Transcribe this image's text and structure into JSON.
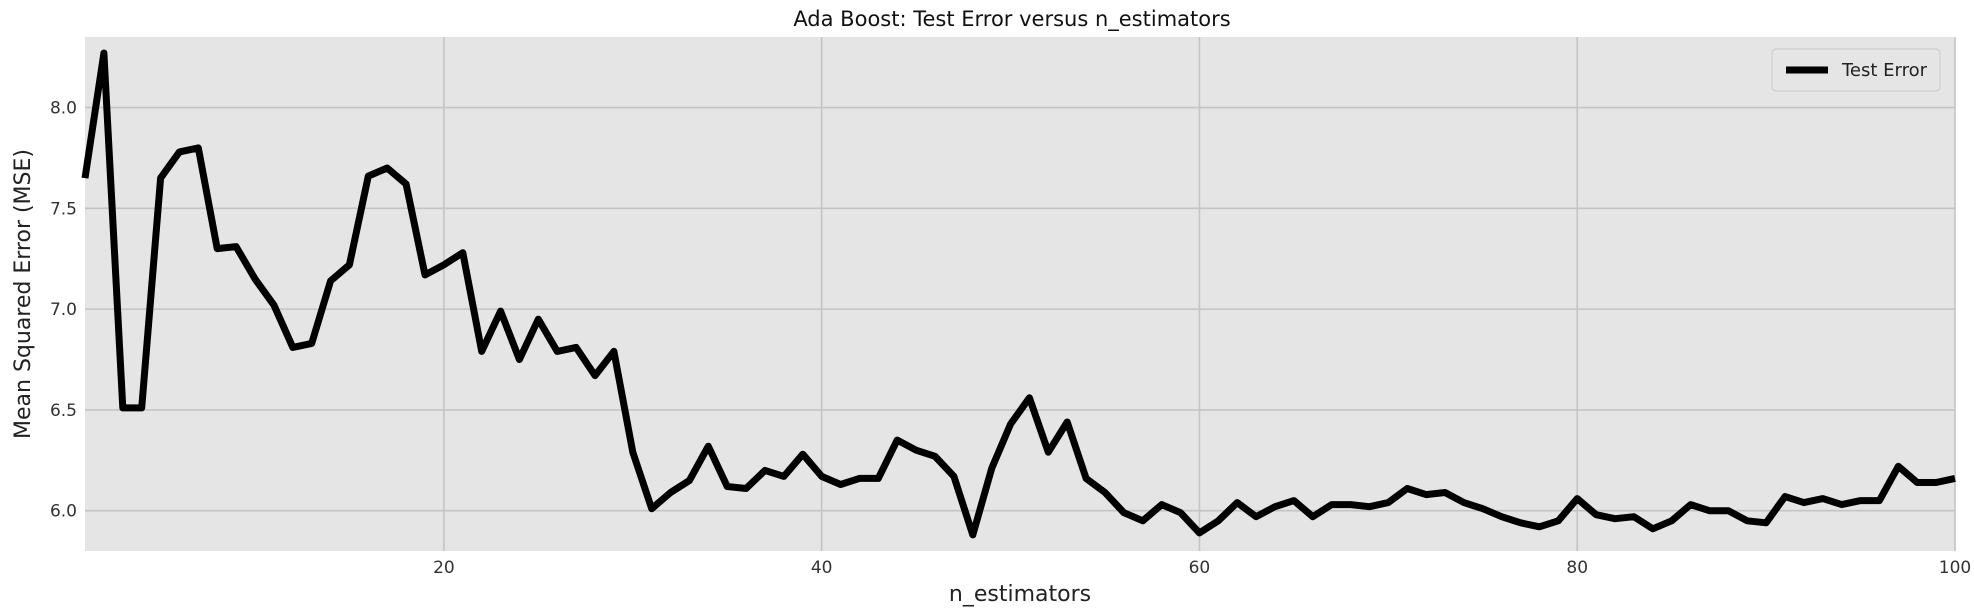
{
  "chart_data": {
    "type": "line",
    "title": "Ada Boost: Test Error versus n_estimators",
    "xlabel": "n_estimators",
    "ylabel": "Mean Squared Error (MSE)",
    "xlim": [
      1,
      100
    ],
    "ylim": [
      5.8,
      8.35
    ],
    "xticks": [
      20,
      40,
      60,
      80,
      100
    ],
    "yticks": [
      6.0,
      6.5,
      7.0,
      7.5,
      8.0
    ],
    "xtick_labels": [
      "20",
      "40",
      "60",
      "80",
      "100"
    ],
    "ytick_labels": [
      "6.0",
      "6.5",
      "7.0",
      "7.5",
      "8.0"
    ],
    "grid": true,
    "legend_position": "top-right",
    "background": "#e5e5e5",
    "grid_color": "#c4c4c4",
    "series": [
      {
        "name": "Test Error",
        "color": "#000000",
        "x": [
          1,
          2,
          3,
          4,
          5,
          6,
          7,
          8,
          9,
          10,
          11,
          12,
          13,
          14,
          15,
          16,
          17,
          18,
          19,
          20,
          21,
          22,
          23,
          24,
          25,
          26,
          27,
          28,
          29,
          30,
          31,
          32,
          33,
          34,
          35,
          36,
          37,
          38,
          39,
          40,
          41,
          42,
          43,
          44,
          45,
          46,
          47,
          48,
          49,
          50,
          51,
          52,
          53,
          54,
          55,
          56,
          57,
          58,
          59,
          60,
          61,
          62,
          63,
          64,
          65,
          66,
          67,
          68,
          69,
          70,
          71,
          72,
          73,
          74,
          75,
          76,
          77,
          78,
          79,
          80,
          81,
          82,
          83,
          84,
          85,
          86,
          87,
          88,
          89,
          90,
          91,
          92,
          93,
          94,
          95,
          96,
          97,
          98,
          99,
          100
        ],
        "values": [
          7.65,
          8.27,
          6.51,
          6.51,
          7.65,
          7.78,
          7.8,
          7.3,
          7.31,
          7.15,
          7.02,
          6.81,
          6.83,
          7.14,
          7.22,
          7.66,
          7.7,
          7.62,
          7.17,
          7.22,
          7.28,
          6.79,
          6.99,
          6.75,
          6.95,
          6.79,
          6.81,
          6.67,
          6.79,
          6.29,
          6.01,
          6.09,
          6.15,
          6.32,
          6.12,
          6.11,
          6.2,
          6.17,
          6.28,
          6.17,
          6.13,
          6.16,
          6.16,
          6.35,
          6.3,
          6.27,
          6.17,
          5.88,
          6.21,
          6.43,
          6.56,
          6.29,
          6.44,
          6.16,
          6.09,
          5.99,
          5.95,
          6.03,
          5.99,
          5.89,
          5.95,
          6.04,
          5.97,
          6.02,
          6.05,
          5.97,
          6.03,
          6.03,
          6.02,
          6.04,
          6.11,
          6.08,
          6.09,
          6.04,
          6.01,
          5.97,
          5.94,
          5.92,
          5.95,
          6.06,
          5.98,
          5.96,
          5.97,
          5.91,
          5.95,
          6.03,
          6.0,
          6.0,
          5.95,
          5.94,
          6.07,
          6.04,
          6.06,
          6.03,
          6.05,
          6.05,
          6.22,
          6.14,
          6.14,
          6.16
        ]
      }
    ]
  }
}
